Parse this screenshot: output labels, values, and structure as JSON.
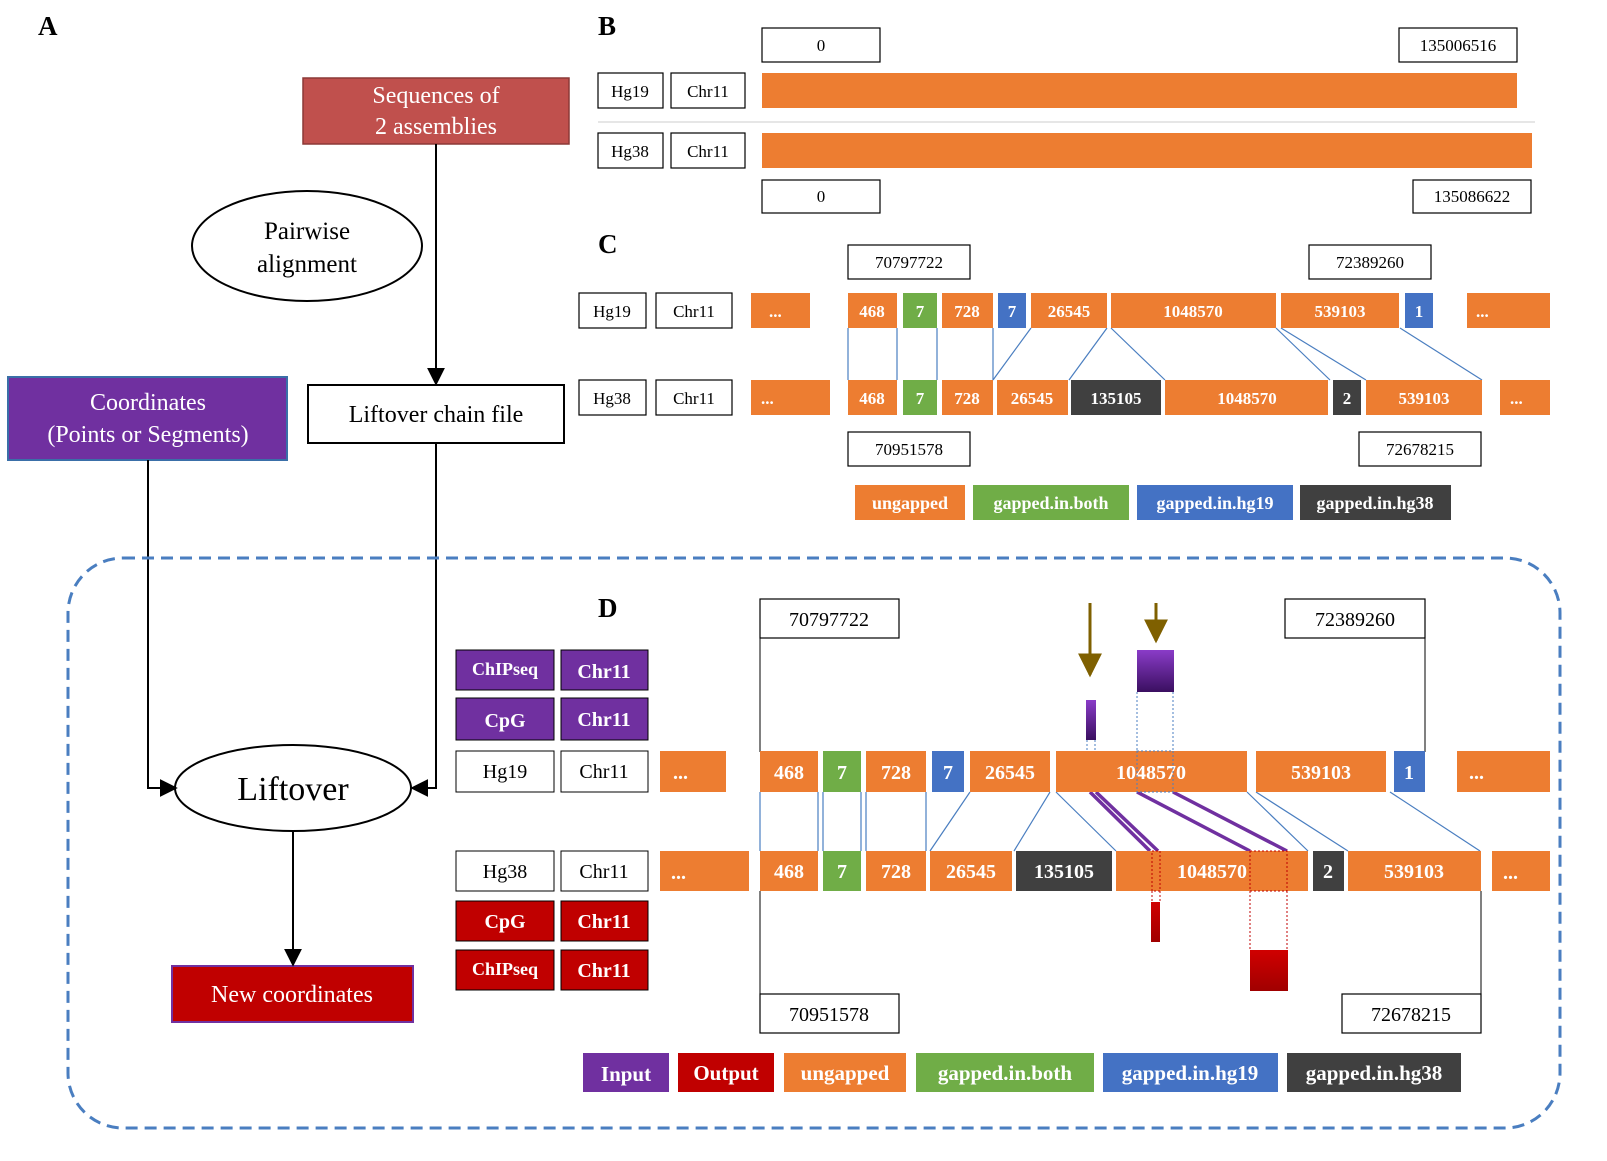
{
  "panels": {
    "a": "A",
    "b": "B",
    "c": "C",
    "d": "D"
  },
  "flowchart": {
    "sequences": [
      "Sequences  of",
      "2  assemblies"
    ],
    "pairwise": [
      "Pairwise",
      "alignment"
    ],
    "chain_file": "Liftover  chain  file",
    "coordinates": [
      "Coordinates",
      "(Points  or  Segments)"
    ],
    "liftover": "Liftover",
    "new_coordinates": "New  coordinates"
  },
  "panel_b": {
    "hg19_label": "Hg19",
    "hg38_label": "Hg38",
    "chr_label": "Chr11",
    "hg19_start": "0",
    "hg19_end": "135006516",
    "hg38_start": "0",
    "hg38_end": "135086622"
  },
  "panel_c": {
    "hg19_label": "Hg19",
    "hg38_label": "Hg38",
    "chr_label": "Chr11",
    "hg19_start": "70797722",
    "hg19_end": "72389260",
    "hg38_start": "70951578",
    "hg38_end": "72678215",
    "ellipsis": "...",
    "hg19_blocks": [
      {
        "label": "468",
        "type": "ungapped"
      },
      {
        "label": "7",
        "type": "gapped.in.both"
      },
      {
        "label": "728",
        "type": "ungapped"
      },
      {
        "label": "7",
        "type": "gapped.in.hg19"
      },
      {
        "label": "26545",
        "type": "ungapped"
      },
      {
        "label": "1048570",
        "type": "ungapped"
      },
      {
        "label": "539103",
        "type": "ungapped"
      },
      {
        "label": "1",
        "type": "gapped.in.hg19"
      }
    ],
    "hg38_blocks": [
      {
        "label": "468",
        "type": "ungapped"
      },
      {
        "label": "7",
        "type": "gapped.in.both"
      },
      {
        "label": "728",
        "type": "ungapped"
      },
      {
        "label": "26545",
        "type": "ungapped"
      },
      {
        "label": "135105",
        "type": "gapped.in.hg38"
      },
      {
        "label": "1048570",
        "type": "ungapped"
      },
      {
        "label": "2",
        "type": "gapped.in.hg38"
      },
      {
        "label": "539103",
        "type": "ungapped"
      }
    ],
    "legend": [
      {
        "label": "ungapped",
        "color": "#ED7D31"
      },
      {
        "label": "gapped.in.both",
        "color": "#70AD47"
      },
      {
        "label": "gapped.in.hg19",
        "color": "#4472C4"
      },
      {
        "label": "gapped.in.hg38",
        "color": "#404040"
      }
    ]
  },
  "panel_d": {
    "chipseq": "ChIPseq",
    "cpg": "CpG",
    "chr_label": "Chr11",
    "hg19_label": "Hg19",
    "hg38_label": "Hg38",
    "hg19_start": "70797722",
    "hg19_end": "72389260",
    "hg38_start": "70951578",
    "hg38_end": "72678215",
    "ellipsis": "...",
    "hg19_blocks": [
      "468",
      "7",
      "728",
      "7",
      "26545",
      "1048570",
      "539103",
      "1"
    ],
    "hg38_blocks": [
      "468",
      "7",
      "728",
      "26545",
      "135105",
      "1048570",
      "2",
      "539103"
    ],
    "legend": [
      {
        "label": "Input",
        "color": "#7030A0"
      },
      {
        "label": "Output",
        "color": "#C00000"
      },
      {
        "label": "ungapped",
        "color": "#ED7D31"
      },
      {
        "label": "gapped.in.both",
        "color": "#70AD47"
      },
      {
        "label": "gapped.in.hg19",
        "color": "#4472C4"
      },
      {
        "label": "gapped.in.hg38",
        "color": "#404040"
      }
    ]
  },
  "colors": {
    "ungapped": "#ED7D31",
    "gapped_both": "#70AD47",
    "gapped_hg19": "#4472C4",
    "gapped_hg38": "#404040",
    "input": "#7030A0",
    "output": "#C00000",
    "sequences_box": "#C0504D",
    "dashed_border": "#4A7EC0",
    "arrow_brown": "#7F6000"
  }
}
